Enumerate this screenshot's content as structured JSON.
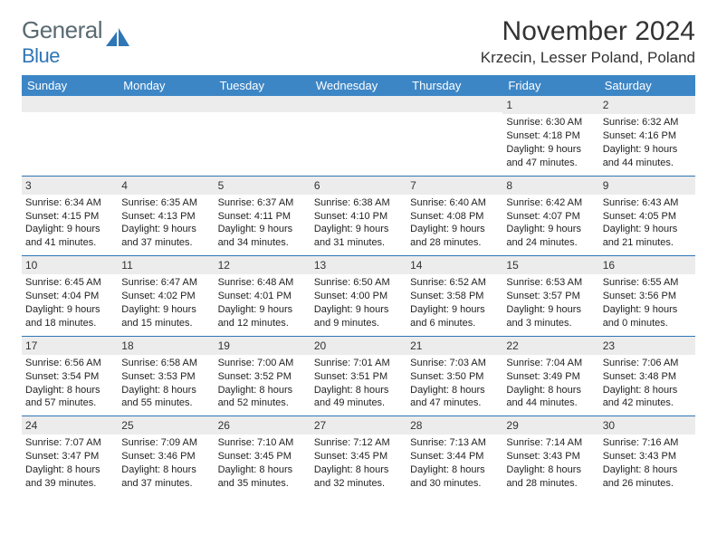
{
  "logo": {
    "text_general": "General",
    "text_blue": "Blue"
  },
  "title": "November 2024",
  "location": "Krzecin, Lesser Poland, Poland",
  "colors": {
    "header_bg": "#3d86c6",
    "header_fg": "#ffffff",
    "row_border": "#2f76b5",
    "daynum_bg": "#ececec",
    "logo_gray": "#5a6a72",
    "logo_blue": "#2f76b5",
    "page_bg": "#ffffff"
  },
  "day_labels": [
    "Sunday",
    "Monday",
    "Tuesday",
    "Wednesday",
    "Thursday",
    "Friday",
    "Saturday"
  ],
  "weeks": [
    [
      {
        "n": "",
        "lines": []
      },
      {
        "n": "",
        "lines": []
      },
      {
        "n": "",
        "lines": []
      },
      {
        "n": "",
        "lines": []
      },
      {
        "n": "",
        "lines": []
      },
      {
        "n": "1",
        "lines": [
          "Sunrise: 6:30 AM",
          "Sunset: 4:18 PM",
          "Daylight: 9 hours and 47 minutes."
        ]
      },
      {
        "n": "2",
        "lines": [
          "Sunrise: 6:32 AM",
          "Sunset: 4:16 PM",
          "Daylight: 9 hours and 44 minutes."
        ]
      }
    ],
    [
      {
        "n": "3",
        "lines": [
          "Sunrise: 6:34 AM",
          "Sunset: 4:15 PM",
          "Daylight: 9 hours and 41 minutes."
        ]
      },
      {
        "n": "4",
        "lines": [
          "Sunrise: 6:35 AM",
          "Sunset: 4:13 PM",
          "Daylight: 9 hours and 37 minutes."
        ]
      },
      {
        "n": "5",
        "lines": [
          "Sunrise: 6:37 AM",
          "Sunset: 4:11 PM",
          "Daylight: 9 hours and 34 minutes."
        ]
      },
      {
        "n": "6",
        "lines": [
          "Sunrise: 6:38 AM",
          "Sunset: 4:10 PM",
          "Daylight: 9 hours and 31 minutes."
        ]
      },
      {
        "n": "7",
        "lines": [
          "Sunrise: 6:40 AM",
          "Sunset: 4:08 PM",
          "Daylight: 9 hours and 28 minutes."
        ]
      },
      {
        "n": "8",
        "lines": [
          "Sunrise: 6:42 AM",
          "Sunset: 4:07 PM",
          "Daylight: 9 hours and 24 minutes."
        ]
      },
      {
        "n": "9",
        "lines": [
          "Sunrise: 6:43 AM",
          "Sunset: 4:05 PM",
          "Daylight: 9 hours and 21 minutes."
        ]
      }
    ],
    [
      {
        "n": "10",
        "lines": [
          "Sunrise: 6:45 AM",
          "Sunset: 4:04 PM",
          "Daylight: 9 hours and 18 minutes."
        ]
      },
      {
        "n": "11",
        "lines": [
          "Sunrise: 6:47 AM",
          "Sunset: 4:02 PM",
          "Daylight: 9 hours and 15 minutes."
        ]
      },
      {
        "n": "12",
        "lines": [
          "Sunrise: 6:48 AM",
          "Sunset: 4:01 PM",
          "Daylight: 9 hours and 12 minutes."
        ]
      },
      {
        "n": "13",
        "lines": [
          "Sunrise: 6:50 AM",
          "Sunset: 4:00 PM",
          "Daylight: 9 hours and 9 minutes."
        ]
      },
      {
        "n": "14",
        "lines": [
          "Sunrise: 6:52 AM",
          "Sunset: 3:58 PM",
          "Daylight: 9 hours and 6 minutes."
        ]
      },
      {
        "n": "15",
        "lines": [
          "Sunrise: 6:53 AM",
          "Sunset: 3:57 PM",
          "Daylight: 9 hours and 3 minutes."
        ]
      },
      {
        "n": "16",
        "lines": [
          "Sunrise: 6:55 AM",
          "Sunset: 3:56 PM",
          "Daylight: 9 hours and 0 minutes."
        ]
      }
    ],
    [
      {
        "n": "17",
        "lines": [
          "Sunrise: 6:56 AM",
          "Sunset: 3:54 PM",
          "Daylight: 8 hours and 57 minutes."
        ]
      },
      {
        "n": "18",
        "lines": [
          "Sunrise: 6:58 AM",
          "Sunset: 3:53 PM",
          "Daylight: 8 hours and 55 minutes."
        ]
      },
      {
        "n": "19",
        "lines": [
          "Sunrise: 7:00 AM",
          "Sunset: 3:52 PM",
          "Daylight: 8 hours and 52 minutes."
        ]
      },
      {
        "n": "20",
        "lines": [
          "Sunrise: 7:01 AM",
          "Sunset: 3:51 PM",
          "Daylight: 8 hours and 49 minutes."
        ]
      },
      {
        "n": "21",
        "lines": [
          "Sunrise: 7:03 AM",
          "Sunset: 3:50 PM",
          "Daylight: 8 hours and 47 minutes."
        ]
      },
      {
        "n": "22",
        "lines": [
          "Sunrise: 7:04 AM",
          "Sunset: 3:49 PM",
          "Daylight: 8 hours and 44 minutes."
        ]
      },
      {
        "n": "23",
        "lines": [
          "Sunrise: 7:06 AM",
          "Sunset: 3:48 PM",
          "Daylight: 8 hours and 42 minutes."
        ]
      }
    ],
    [
      {
        "n": "24",
        "lines": [
          "Sunrise: 7:07 AM",
          "Sunset: 3:47 PM",
          "Daylight: 8 hours and 39 minutes."
        ]
      },
      {
        "n": "25",
        "lines": [
          "Sunrise: 7:09 AM",
          "Sunset: 3:46 PM",
          "Daylight: 8 hours and 37 minutes."
        ]
      },
      {
        "n": "26",
        "lines": [
          "Sunrise: 7:10 AM",
          "Sunset: 3:45 PM",
          "Daylight: 8 hours and 35 minutes."
        ]
      },
      {
        "n": "27",
        "lines": [
          "Sunrise: 7:12 AM",
          "Sunset: 3:45 PM",
          "Daylight: 8 hours and 32 minutes."
        ]
      },
      {
        "n": "28",
        "lines": [
          "Sunrise: 7:13 AM",
          "Sunset: 3:44 PM",
          "Daylight: 8 hours and 30 minutes."
        ]
      },
      {
        "n": "29",
        "lines": [
          "Sunrise: 7:14 AM",
          "Sunset: 3:43 PM",
          "Daylight: 8 hours and 28 minutes."
        ]
      },
      {
        "n": "30",
        "lines": [
          "Sunrise: 7:16 AM",
          "Sunset: 3:43 PM",
          "Daylight: 8 hours and 26 minutes."
        ]
      }
    ]
  ]
}
